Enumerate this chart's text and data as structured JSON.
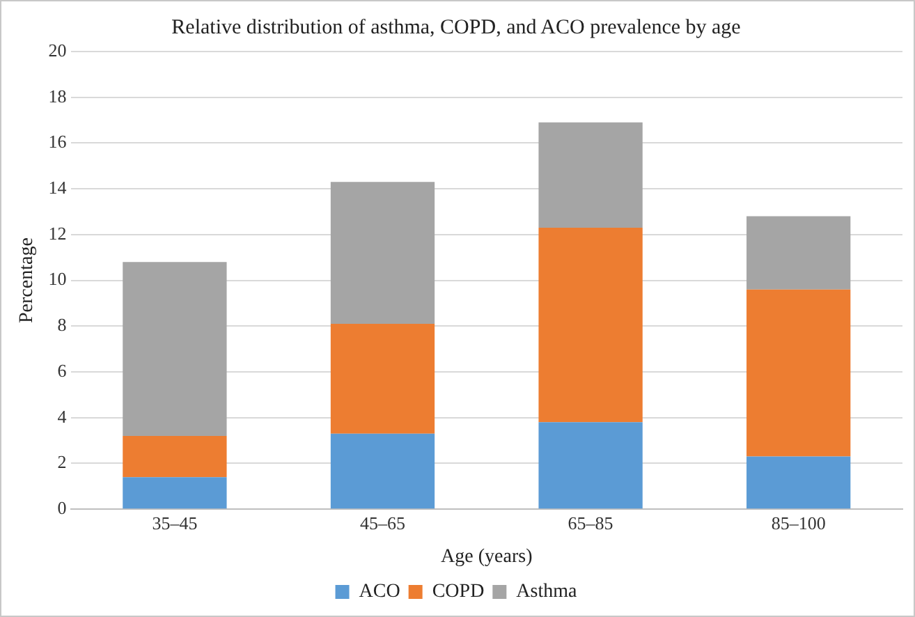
{
  "chart_data": {
    "type": "bar",
    "title": "Relative distribution of asthma, COPD, and ACO prevalence by age",
    "xlabel": "Age (years)",
    "ylabel": "Percentage",
    "categories": [
      "35–45",
      "45–65",
      "65–85",
      "85–100"
    ],
    "stacked": true,
    "series": [
      {
        "name": "ACO",
        "color": "#5b9bd5",
        "values": [
          1.4,
          3.3,
          3.8,
          2.3
        ]
      },
      {
        "name": "COPD",
        "color": "#ed7d31",
        "values": [
          1.8,
          4.8,
          8.5,
          7.3
        ]
      },
      {
        "name": "Asthma",
        "color": "#a5a5a5",
        "values": [
          7.6,
          6.2,
          4.6,
          3.2
        ]
      }
    ],
    "ylim": [
      0,
      20
    ],
    "yticks": [
      0,
      2,
      4,
      6,
      8,
      10,
      12,
      14,
      16,
      18,
      20
    ],
    "grid": "y",
    "legend": "bottom"
  }
}
